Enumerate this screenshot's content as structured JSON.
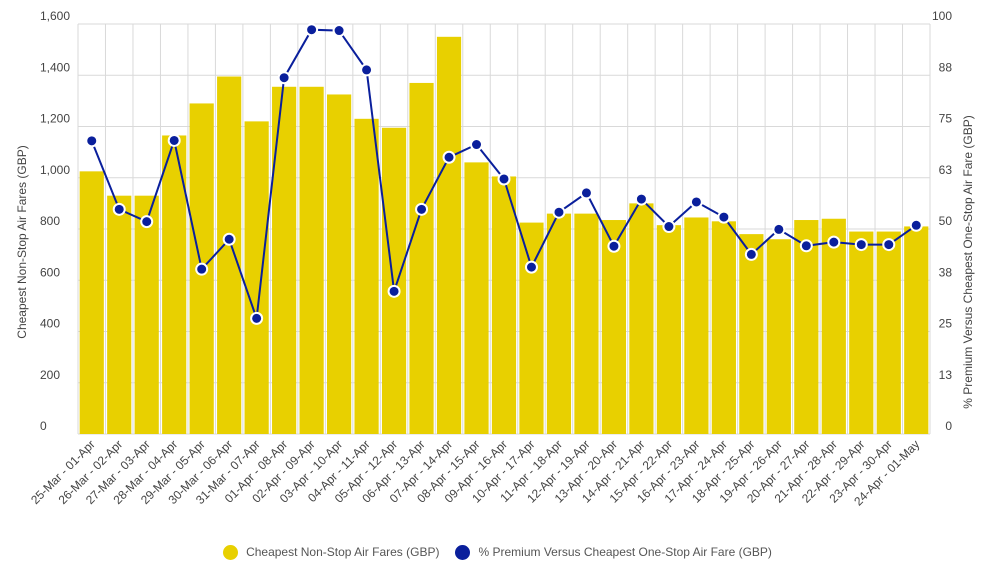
{
  "chart_data": {
    "type": "bar",
    "categories": [
      "25-Mar - 01-Apr",
      "26-Mar - 02-Apr",
      "27-Mar - 03-Apr",
      "28-Mar - 04-Apr",
      "29-Mar - 05-Apr",
      "30-Mar - 06-Apr",
      "31-Mar - 07-Apr",
      "01-Apr - 08-Apr",
      "02-Apr - 09-Apr",
      "03-Apr - 10-Apr",
      "04-Apr - 11-Apr",
      "05-Apr - 12-Apr",
      "06-Apr - 13-Apr",
      "07-Apr - 14-Apr",
      "08-Apr - 15-Apr",
      "09-Apr - 16-Apr",
      "10-Apr - 17-Apr",
      "11-Apr - 18-Apr",
      "12-Apr - 19-Apr",
      "13-Apr - 20-Apr",
      "14-Apr - 21-Apr",
      "15-Apr - 22-Apr",
      "16-Apr - 23-Apr",
      "17-Apr - 24-Apr",
      "18-Apr - 25-Apr",
      "19-Apr - 26-Apr",
      "20-Apr - 27-Apr",
      "21-Apr - 28-Apr",
      "22-Apr - 29-Apr",
      "23-Apr - 30-Apr",
      "24-Apr - 01-May"
    ],
    "series": [
      {
        "name": "Cheapest Non-Stop Air Fares (GBP)",
        "type": "bar",
        "axis": "left",
        "color": "#e8d000",
        "values": [
          1025,
          930,
          930,
          1165,
          1290,
          1395,
          1220,
          1355,
          1355,
          1325,
          1230,
          1195,
          1370,
          1550,
          1060,
          1005,
          825,
          860,
          860,
          835,
          900,
          815,
          845,
          830,
          780,
          760,
          835,
          840,
          790,
          790,
          810
        ]
      },
      {
        "name": "% Premium Versus Cheapest One-Stop Air Fare (GBP)",
        "type": "line",
        "axis": "right",
        "color": "#0a1f9c",
        "values": [
          71.5,
          54.8,
          51.8,
          71.6,
          40.2,
          47.5,
          28.2,
          86.9,
          98.6,
          98.4,
          88.8,
          34.8,
          54.8,
          67.5,
          70.6,
          62.2,
          40.7,
          54.1,
          58.8,
          45.8,
          57.3,
          50.6,
          56.6,
          52.9,
          43.8,
          49.9,
          45.9,
          46.8,
          46.2,
          46.2,
          50.9
        ]
      }
    ],
    "yticks_left": [
      "0",
      "200",
      "400",
      "600",
      "800",
      "1,000",
      "1,200",
      "1,400",
      "1,600"
    ],
    "yticks_right": [
      "0",
      "13",
      "25",
      "38",
      "50",
      "63",
      "75",
      "88",
      "100"
    ],
    "ylim_left": [
      0,
      1600
    ],
    "ylim_right": [
      0,
      100
    ],
    "ylabel_left": "Cheapest Non-Stop Air Fares (GBP)",
    "ylabel_right": "% Premium Versus Cheapest One-Stop Air Fare (GBP)",
    "grid": true,
    "legend_position": "bottom"
  },
  "legend": {
    "items": [
      {
        "label": "Cheapest Non-Stop Air Fares (GBP)",
        "color": "#e8d000"
      },
      {
        "label": "% Premium Versus Cheapest One-Stop Air Fare (GBP)",
        "color": "#0a1f9c"
      }
    ]
  }
}
